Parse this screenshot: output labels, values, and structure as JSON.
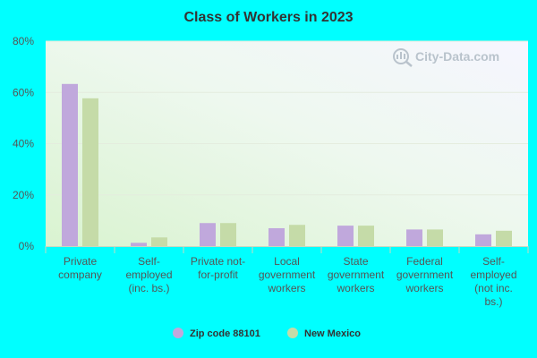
{
  "chart_data": {
    "type": "bar",
    "title": "Class of Workers in 2023",
    "xlabel": "",
    "ylabel": "",
    "categories": [
      [
        "Private",
        "company"
      ],
      [
        "Self-",
        "employed",
        "(inc. bs.)"
      ],
      [
        "Private not-",
        "for-profit"
      ],
      [
        "Local",
        "government",
        "workers"
      ],
      [
        "State",
        "government",
        "workers"
      ],
      [
        "Federal",
        "government",
        "workers"
      ],
      [
        "Self-",
        "employed",
        "(not inc.",
        "bs.)"
      ]
    ],
    "series": [
      {
        "name": "Zip code 88101",
        "color": "#c0a8dc",
        "values": [
          63.3,
          1.3,
          9.0,
          7.0,
          8.0,
          6.5,
          4.6
        ]
      },
      {
        "name": "New Mexico",
        "color": "#c5dba8",
        "values": [
          57.7,
          3.4,
          9.0,
          8.3,
          8.0,
          6.5,
          6.0
        ]
      }
    ],
    "ylim": [
      0,
      80
    ],
    "yticks": [
      0,
      20,
      40,
      60,
      80
    ],
    "ytick_labels": [
      "0%",
      "20%",
      "40%",
      "60%",
      "80%"
    ],
    "grid": true,
    "legend_position": "bottom",
    "watermark": "City-Data.com"
  }
}
